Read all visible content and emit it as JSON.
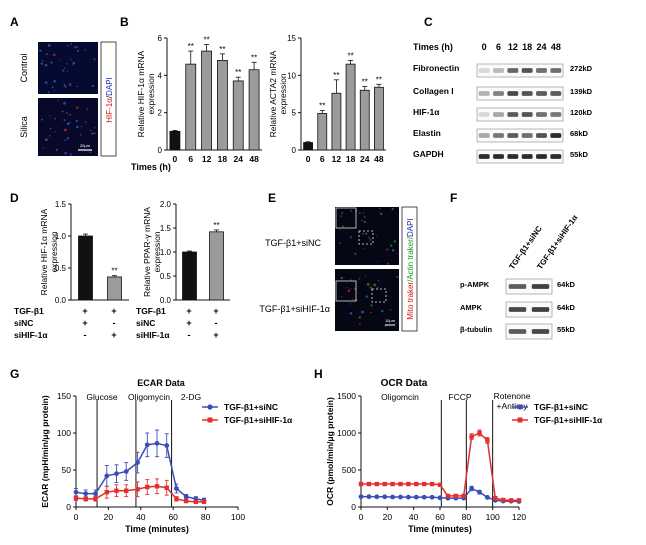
{
  "panels": {
    "A": {
      "letter": "A",
      "rows": [
        "Control",
        "Silica"
      ],
      "stain_hif": "HIF-1α",
      "stain_sep": "/",
      "stain_dapi": "DAPI",
      "scale": "20μm"
    },
    "B": {
      "letter": "B",
      "times_label": "Times (h)"
    },
    "C": {
      "letter": "C",
      "times_label": "Times (h)",
      "times": [
        "0",
        "6",
        "12",
        "18",
        "24",
        "48"
      ],
      "blots": [
        {
          "name": "Fibronectin",
          "kd": "272kD"
        },
        {
          "name": "Collagen I",
          "kd": "139kD"
        },
        {
          "name": "HIF-1α",
          "kd": "120kD"
        },
        {
          "name": "Elastin",
          "kd": "68kD"
        },
        {
          "name": "GAPDH",
          "kd": "55kD"
        }
      ]
    },
    "D": {
      "letter": "D",
      "conditions": [
        {
          "label": "TGF-β1",
          "marks": [
            "+",
            "+"
          ]
        },
        {
          "label": "siNC",
          "marks": [
            "+",
            "-"
          ]
        },
        {
          "label": "siHIF-1α",
          "marks": [
            "-",
            "+"
          ]
        }
      ]
    },
    "E": {
      "letter": "E",
      "rows": [
        "TGF-β1+siNC",
        "TGF-β1+siHIF-1α"
      ],
      "stain_mito": "Mito traker",
      "stain_actin": "/Actin traker/",
      "stain_dapi": "DAPI",
      "scale": "10μm"
    },
    "F": {
      "letter": "F",
      "lanes": [
        "TGF-β1+siNC",
        "TGF-β1+siHIF-1α"
      ],
      "blots": [
        {
          "name": "p-AMPK",
          "kd": "64kD"
        },
        {
          "name": "AMPK",
          "kd": "64kD"
        },
        {
          "name": "β-tubulin",
          "kd": "55kD"
        }
      ]
    },
    "G": {
      "letter": "G",
      "phases": [
        "Glucose",
        "Oligomycin",
        "2-DG"
      ]
    },
    "H": {
      "letter": "H",
      "phases": [
        "Oligomcin",
        "FCCP",
        "Rotenone",
        "+Antimy"
      ]
    }
  },
  "chart_data": [
    {
      "id": "B1",
      "type": "bar",
      "ylabel": "Relative HIF-1α mRNA expression",
      "categories": [
        "0",
        "6",
        "12",
        "18",
        "24",
        "48"
      ],
      "values": [
        1.0,
        4.6,
        5.3,
        4.8,
        3.7,
        4.3
      ],
      "errors": [
        0.05,
        0.7,
        0.35,
        0.35,
        0.2,
        0.4
      ],
      "stars": [
        "",
        "**",
        "**",
        "**",
        "**",
        "**"
      ],
      "ylim": [
        0,
        6
      ],
      "yticks": [
        "0",
        "2",
        "4",
        "6"
      ],
      "bar_colors": [
        "#111111",
        "#9b9b9b"
      ]
    },
    {
      "id": "B2",
      "type": "bar",
      "ylabel": "Relative ACTA2 mRNA expression",
      "categories": [
        "0",
        "6",
        "12",
        "18",
        "24",
        "48"
      ],
      "values": [
        1.0,
        4.9,
        7.6,
        11.5,
        8.0,
        8.4
      ],
      "errors": [
        0.1,
        0.4,
        1.8,
        0.5,
        0.5,
        0.4
      ],
      "stars": [
        "",
        "**",
        "**",
        "**",
        "**",
        "**"
      ],
      "ylim": [
        0,
        15
      ],
      "yticks": [
        "0",
        "5",
        "10",
        "15"
      ],
      "bar_colors": [
        "#111111",
        "#9b9b9b"
      ]
    },
    {
      "id": "D1",
      "type": "bar",
      "ylabel": "Relative HIF-1α mRNA expression",
      "categories": [
        "siNC",
        "siHIF-1α"
      ],
      "values": [
        1.0,
        0.36
      ],
      "errors": [
        0.03,
        0.02
      ],
      "stars": [
        "",
        "**"
      ],
      "ylim": [
        0,
        1.5
      ],
      "yticks": [
        "0.0",
        "0.5",
        "1.0",
        "1.5"
      ],
      "bar_colors": [
        "#111111",
        "#9b9b9b"
      ]
    },
    {
      "id": "D2",
      "type": "bar",
      "ylabel": "Relative PPAR-γ mRNA expression",
      "categories": [
        "siNC",
        "siHIF-1α"
      ],
      "values": [
        1.0,
        1.42
      ],
      "errors": [
        0.02,
        0.04
      ],
      "stars": [
        "",
        "**"
      ],
      "ylim": [
        0,
        2.0
      ],
      "yticks": [
        "0.0",
        "0.5",
        "1.0",
        "1.5",
        "2.0"
      ],
      "bar_colors": [
        "#111111",
        "#9b9b9b"
      ]
    },
    {
      "id": "G",
      "type": "line",
      "title": "ECAR Data",
      "xlabel": "Time (minutes)",
      "ylabel": "ECAR (mpH/min/μg protein)",
      "xlim": [
        0,
        100
      ],
      "ylim": [
        0,
        150
      ],
      "xticks": [
        "0",
        "20",
        "40",
        "60",
        "80",
        "100"
      ],
      "yticks": [
        "0",
        "50",
        "100",
        "150"
      ],
      "injections": [
        13,
        37,
        59
      ],
      "series": [
        {
          "name": "TGF-β1+siNC",
          "color": "#3a4fb5",
          "marker": "circle",
          "x": [
            0,
            6,
            12,
            19,
            25,
            31,
            38,
            44,
            50,
            56,
            62,
            68,
            74,
            79
          ],
          "y": [
            20,
            18,
            18,
            42,
            45,
            48,
            60,
            84,
            86,
            83,
            25,
            14,
            11,
            9
          ],
          "err": [
            5,
            5,
            5,
            14,
            12,
            12,
            14,
            16,
            18,
            16,
            6,
            3,
            3,
            3
          ]
        },
        {
          "name": "TGF-β1+siHIF-1α",
          "color": "#e03030",
          "marker": "square",
          "x": [
            0,
            6,
            12,
            19,
            25,
            31,
            38,
            44,
            50,
            56,
            62,
            68,
            74,
            79
          ],
          "y": [
            12,
            11,
            11,
            20,
            22,
            22,
            24,
            27,
            28,
            26,
            11,
            8,
            7,
            7
          ],
          "err": [
            3,
            3,
            3,
            8,
            8,
            8,
            10,
            10,
            10,
            10,
            3,
            2,
            2,
            2
          ]
        }
      ]
    },
    {
      "id": "H",
      "type": "line",
      "title": "OCR Data",
      "xlabel": "Time (minutes)",
      "ylabel": "OCR (pmol/min/μg protein)",
      "xlim": [
        0,
        120
      ],
      "ylim": [
        0,
        1500
      ],
      "xticks": [
        "0",
        "20",
        "40",
        "60",
        "80",
        "100",
        "120"
      ],
      "yticks": [
        "0",
        "500",
        "1000",
        "1500"
      ],
      "injections": [
        61,
        80,
        100
      ],
      "series": [
        {
          "name": "TGF-β1+siNC",
          "color": "#3a4fb5",
          "marker": "circle",
          "x": [
            0,
            6,
            12,
            18,
            24,
            30,
            36,
            42,
            48,
            54,
            60,
            66,
            72,
            78,
            84,
            90,
            96,
            102,
            108,
            114,
            120
          ],
          "y": [
            140,
            140,
            138,
            138,
            135,
            135,
            133,
            133,
            132,
            132,
            125,
            120,
            120,
            120,
            250,
            200,
            130,
            90,
            80,
            78,
            75
          ],
          "err": [
            10,
            10,
            10,
            10,
            10,
            10,
            10,
            10,
            10,
            10,
            10,
            10,
            10,
            10,
            30,
            25,
            10,
            8,
            8,
            8,
            8
          ]
        },
        {
          "name": "TGF-β1+siHIF-1α",
          "color": "#e03030",
          "marker": "square",
          "x": [
            0,
            6,
            12,
            18,
            24,
            30,
            36,
            42,
            48,
            54,
            60,
            66,
            72,
            78,
            84,
            90,
            96,
            102,
            108,
            114,
            120
          ],
          "y": [
            310,
            310,
            310,
            310,
            310,
            310,
            310,
            310,
            310,
            310,
            300,
            150,
            150,
            150,
            950,
            1000,
            900,
            120,
            95,
            90,
            90
          ],
          "err": [
            10,
            10,
            10,
            10,
            10,
            10,
            10,
            10,
            10,
            10,
            10,
            10,
            10,
            10,
            40,
            40,
            40,
            10,
            8,
            8,
            8
          ]
        }
      ]
    }
  ]
}
